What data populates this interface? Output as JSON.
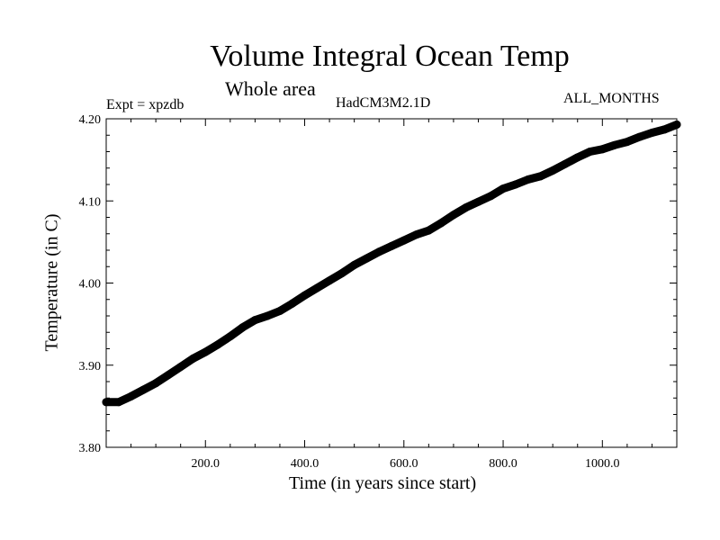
{
  "chart_data": {
    "type": "line",
    "title": "Volume Integral Ocean Temp",
    "subtitle": "Whole area",
    "experiment_label": "Expt = xpzdb",
    "model_label": "HadCM3M2.1D",
    "months_label": "ALL_MONTHS",
    "xlabel": "Time (in years since start)",
    "ylabel": "Temperature (in C)",
    "xlim": [
      0,
      1150
    ],
    "ylim": [
      3.8,
      4.2
    ],
    "x_ticks": [
      200,
      400,
      600,
      800,
      1000
    ],
    "x_tick_labels": [
      "200.0",
      "400.0",
      "600.0",
      "800.0",
      "1000.0"
    ],
    "y_ticks": [
      3.8,
      3.9,
      4.0,
      4.1,
      4.2
    ],
    "y_tick_labels": [
      "3.80",
      "3.90",
      "4.00",
      "4.10",
      "4.20"
    ],
    "series": [
      {
        "name": "Volume integral ocean temperature",
        "x": [
          0,
          25,
          50,
          75,
          100,
          125,
          150,
          175,
          200,
          225,
          250,
          275,
          300,
          325,
          350,
          375,
          400,
          425,
          450,
          475,
          500,
          525,
          550,
          575,
          600,
          625,
          650,
          675,
          700,
          725,
          750,
          775,
          800,
          825,
          850,
          875,
          900,
          925,
          950,
          975,
          1000,
          1025,
          1050,
          1075,
          1100,
          1125,
          1150
        ],
        "values": [
          3.855,
          3.855,
          3.862,
          3.87,
          3.878,
          3.888,
          3.898,
          3.908,
          3.916,
          3.925,
          3.935,
          3.946,
          3.955,
          3.96,
          3.966,
          3.975,
          3.985,
          3.994,
          4.003,
          4.012,
          4.022,
          4.03,
          4.038,
          4.045,
          4.052,
          4.059,
          4.064,
          4.073,
          4.083,
          4.092,
          4.099,
          4.106,
          4.115,
          4.12,
          4.126,
          4.13,
          4.137,
          4.145,
          4.153,
          4.16,
          4.163,
          4.168,
          4.172,
          4.178,
          4.183,
          4.187,
          4.193
        ]
      }
    ]
  }
}
